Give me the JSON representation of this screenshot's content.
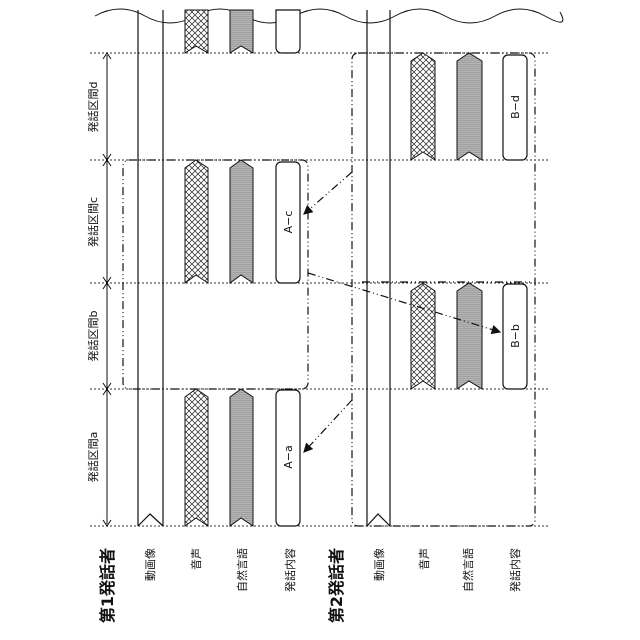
{
  "speakers": [
    {
      "label": "第1発話者",
      "streams": [
        "動画像",
        "音声",
        "自然言語",
        "発話内容"
      ]
    },
    {
      "label": "第2発話者",
      "streams": [
        "動画像",
        "音声",
        "自然言語",
        "発話内容"
      ]
    }
  ],
  "intervals": [
    "発話区間a",
    "発話区間b",
    "発話区間c",
    "発話区間d"
  ],
  "contents": {
    "a": "A−a",
    "b": "B−b",
    "c": "A−c",
    "d": "B−d"
  },
  "patterns": {
    "audio": "crosshatch",
    "natural_language": "horizontal-stripes-gray"
  },
  "colors": {
    "line": "#111111",
    "nl_fill": "#b5b5b5"
  }
}
